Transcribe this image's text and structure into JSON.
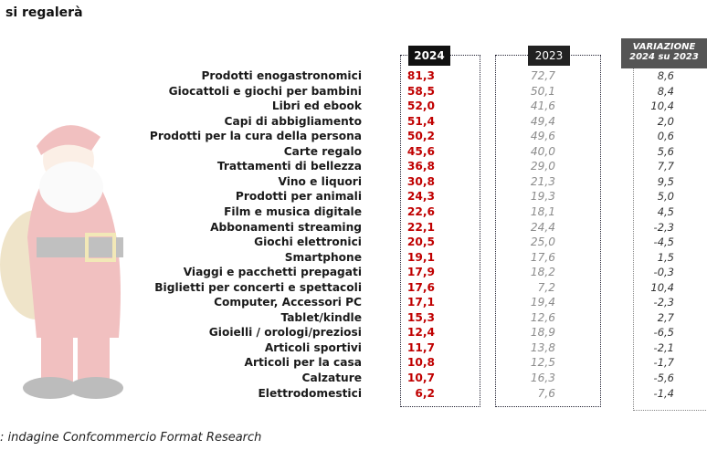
{
  "header": {
    "title": "si regalerà"
  },
  "table": {
    "columns": [
      "2024",
      "2023",
      "VARIAZIONE",
      "2024 su 2023"
    ],
    "rows": [
      [
        "Prodotti enogastronomici",
        "81,3",
        "72,7",
        "8,6"
      ],
      [
        "Giocattoli e giochi per bambini",
        "58,5",
        "50,1",
        "8,4"
      ],
      [
        "Libri ed ebook",
        "52,0",
        "41,6",
        "10,4"
      ],
      [
        "Capi di abbigliamento",
        "51,4",
        "49,4",
        "2,0"
      ],
      [
        "Prodotti per la cura della persona",
        "50,2",
        "49,6",
        "0,6"
      ],
      [
        "Carte regalo",
        "45,6",
        "40,0",
        "5,6"
      ],
      [
        "Trattamenti di bellezza",
        "36,8",
        "29,0",
        "7,7"
      ],
      [
        "Vino e liquori",
        "30,8",
        "21,3",
        "9,5"
      ],
      [
        "Prodotti per animali",
        "24,3",
        "19,3",
        "5,0"
      ],
      [
        "Film e musica digitale",
        "22,6",
        "18,1",
        "4,5"
      ],
      [
        "Abbonamenti streaming",
        "22,1",
        "24,4",
        "-2,3"
      ],
      [
        "Giochi elettronici",
        "20,5",
        "25,0",
        "-4,5"
      ],
      [
        "Smartphone",
        "19,1",
        "17,6",
        "1,5"
      ],
      [
        "Viaggi e pacchetti prepagati",
        "17,9",
        "18,2",
        "-0,3"
      ],
      [
        "Biglietti per concerti e spettacoli",
        "17,6",
        "7,2",
        "10,4"
      ],
      [
        "Computer, Accessori PC",
        "17,1",
        "19,4",
        "-2,3"
      ],
      [
        "Tablet/kindle",
        "15,3",
        "12,6",
        "2,7"
      ],
      [
        "Gioielli / orologi/preziosi",
        "12,4",
        "18,9",
        "-6,5"
      ],
      [
        "Articoli sportivi",
        "11,7",
        "13,8",
        "-2,1"
      ],
      [
        "Articoli per la casa",
        "10,8",
        "12,5",
        "-1,7"
      ],
      [
        "Calzature",
        "10,7",
        "16,3",
        "-5,6"
      ],
      [
        "Elettrodomestici",
        "6,2",
        "7,6",
        "-1,4"
      ]
    ]
  },
  "footer": {
    "source": ": indagine Confcommercio Format Research"
  }
}
